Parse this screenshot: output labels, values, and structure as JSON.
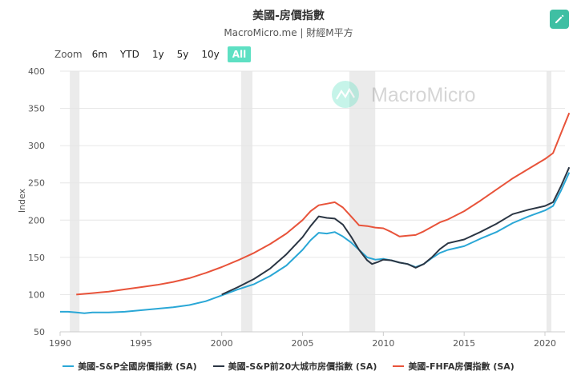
{
  "header": {
    "title": "美國-房價指數",
    "subtitle": "MacroMicro.me | 財經M平方",
    "edit_icon": "pencil-icon"
  },
  "zoom": {
    "label": "Zoom",
    "options": [
      "6m",
      "YTD",
      "1y",
      "5y",
      "10y",
      "All"
    ],
    "active": "All"
  },
  "watermark": {
    "text": "MacroMicro"
  },
  "colors": {
    "accent": "#5ee0c3",
    "series": [
      "#2aa7d6",
      "#2b3644",
      "#e8533a"
    ],
    "recession": "#ebebeb"
  },
  "chart_data": {
    "type": "line",
    "title": "美國-房價指數",
    "subtitle": "MacroMicro.me | 財經M平方",
    "xlabel": "",
    "ylabel": "Index",
    "xlim": [
      1989.5,
      2021.7
    ],
    "ylim": [
      50,
      400
    ],
    "x_ticks": [
      "1990",
      "1995",
      "2000",
      "2005",
      "2010",
      "2015",
      "2020"
    ],
    "y_ticks": [
      "50",
      "100",
      "150",
      "200",
      "250",
      "300",
      "350",
      "400"
    ],
    "grid": "horizontal",
    "legend": "bottom",
    "recessions": [
      [
        1990.6,
        1991.2
      ],
      [
        2001.2,
        2001.9
      ],
      [
        2007.9,
        2009.5
      ],
      [
        2020.1,
        2020.4
      ]
    ],
    "series": [
      {
        "name": "美國-S&P全國房價指數 (SA)",
        "color": "#2aa7d6",
        "points": [
          [
            1990.0,
            77
          ],
          [
            1990.5,
            77
          ],
          [
            1991.0,
            76
          ],
          [
            1991.5,
            75
          ],
          [
            1992.0,
            76
          ],
          [
            1993.0,
            76
          ],
          [
            1994.0,
            77
          ],
          [
            1995.0,
            79
          ],
          [
            1996.0,
            81
          ],
          [
            1997.0,
            83
          ],
          [
            1998.0,
            86
          ],
          [
            1999.0,
            91
          ],
          [
            2000.0,
            99
          ],
          [
            2001.0,
            107
          ],
          [
            2002.0,
            114
          ],
          [
            2003.0,
            125
          ],
          [
            2004.0,
            139
          ],
          [
            2005.0,
            160
          ],
          [
            2005.5,
            173
          ],
          [
            2006.0,
            183
          ],
          [
            2006.5,
            182
          ],
          [
            2007.0,
            184
          ],
          [
            2007.5,
            178
          ],
          [
            2008.0,
            170
          ],
          [
            2008.5,
            160
          ],
          [
            2009.0,
            150
          ],
          [
            2009.5,
            147
          ],
          [
            2010.0,
            148
          ],
          [
            2010.5,
            146
          ],
          [
            2011.0,
            143
          ],
          [
            2011.5,
            141
          ],
          [
            2012.0,
            137
          ],
          [
            2012.5,
            141
          ],
          [
            2013.0,
            149
          ],
          [
            2013.5,
            156
          ],
          [
            2014.0,
            160
          ],
          [
            2015.0,
            165
          ],
          [
            2016.0,
            175
          ],
          [
            2017.0,
            184
          ],
          [
            2018.0,
            196
          ],
          [
            2019.0,
            205
          ],
          [
            2020.0,
            213
          ],
          [
            2020.5,
            219
          ],
          [
            2021.0,
            240
          ],
          [
            2021.5,
            264
          ]
        ]
      },
      {
        "name": "美國-S&P前20大城市房價指數 (SA)",
        "color": "#2b3644",
        "points": [
          [
            2000.0,
            100
          ],
          [
            2001.0,
            110
          ],
          [
            2002.0,
            121
          ],
          [
            2003.0,
            135
          ],
          [
            2004.0,
            154
          ],
          [
            2005.0,
            177
          ],
          [
            2005.5,
            192
          ],
          [
            2006.0,
            205
          ],
          [
            2006.5,
            203
          ],
          [
            2007.0,
            202
          ],
          [
            2007.5,
            194
          ],
          [
            2008.0,
            178
          ],
          [
            2008.5,
            160
          ],
          [
            2009.0,
            146
          ],
          [
            2009.3,
            141
          ],
          [
            2009.7,
            144
          ],
          [
            2010.0,
            147
          ],
          [
            2010.5,
            146
          ],
          [
            2011.0,
            143
          ],
          [
            2011.5,
            141
          ],
          [
            2012.0,
            136
          ],
          [
            2012.5,
            141
          ],
          [
            2013.0,
            150
          ],
          [
            2013.5,
            161
          ],
          [
            2014.0,
            169
          ],
          [
            2015.0,
            174
          ],
          [
            2016.0,
            184
          ],
          [
            2017.0,
            195
          ],
          [
            2018.0,
            208
          ],
          [
            2019.0,
            214
          ],
          [
            2020.0,
            219
          ],
          [
            2020.5,
            224
          ],
          [
            2021.0,
            246
          ],
          [
            2021.5,
            271
          ]
        ]
      },
      {
        "name": "美國-FHFA房價指數 (SA)",
        "color": "#e8533a",
        "points": [
          [
            1991.0,
            100
          ],
          [
            1992.0,
            102
          ],
          [
            1993.0,
            104
          ],
          [
            1994.0,
            107
          ],
          [
            1995.0,
            110
          ],
          [
            1996.0,
            113
          ],
          [
            1997.0,
            117
          ],
          [
            1998.0,
            122
          ],
          [
            1999.0,
            129
          ],
          [
            2000.0,
            137
          ],
          [
            2001.0,
            146
          ],
          [
            2002.0,
            156
          ],
          [
            2003.0,
            168
          ],
          [
            2004.0,
            182
          ],
          [
            2005.0,
            200
          ],
          [
            2005.5,
            212
          ],
          [
            2006.0,
            220
          ],
          [
            2006.5,
            222
          ],
          [
            2007.0,
            224
          ],
          [
            2007.5,
            217
          ],
          [
            2008.0,
            205
          ],
          [
            2008.5,
            193
          ],
          [
            2009.0,
            192
          ],
          [
            2009.5,
            190
          ],
          [
            2010.0,
            189
          ],
          [
            2010.5,
            184
          ],
          [
            2011.0,
            178
          ],
          [
            2011.5,
            179
          ],
          [
            2012.0,
            180
          ],
          [
            2012.5,
            185
          ],
          [
            2013.0,
            191
          ],
          [
            2013.5,
            197
          ],
          [
            2014.0,
            201
          ],
          [
            2015.0,
            212
          ],
          [
            2016.0,
            226
          ],
          [
            2017.0,
            241
          ],
          [
            2018.0,
            256
          ],
          [
            2019.0,
            269
          ],
          [
            2020.0,
            282
          ],
          [
            2020.5,
            290
          ],
          [
            2021.0,
            317
          ],
          [
            2021.5,
            344
          ]
        ]
      }
    ]
  }
}
